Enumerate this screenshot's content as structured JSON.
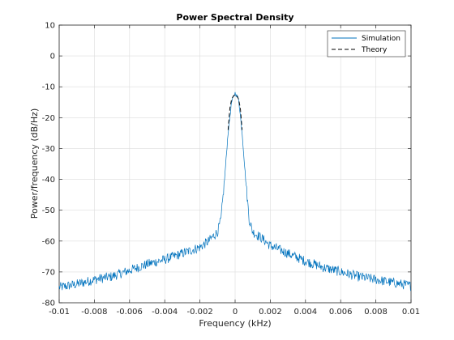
{
  "chart_data": {
    "type": "line",
    "title": "Power Spectral Density",
    "xlabel": "Frequency (kHz)",
    "ylabel": "Power/frequency (dB/Hz)",
    "xlim": [
      -0.01,
      0.01
    ],
    "ylim": [
      -80,
      10
    ],
    "xticks": [
      -0.01,
      -0.008,
      -0.006,
      -0.004,
      -0.002,
      0,
      0.002,
      0.004,
      0.006,
      0.008,
      0.01
    ],
    "xtick_labels": [
      "-0.01",
      "-0.008",
      "-0.006",
      "-0.004",
      "-0.002",
      "0",
      "0.002",
      "0.004",
      "0.006",
      "0.008",
      "0.01"
    ],
    "yticks": [
      10,
      0,
      -10,
      -20,
      -30,
      -40,
      -50,
      -60,
      -70,
      -80
    ],
    "ytick_labels": [
      "10",
      "0",
      "-10",
      "-20",
      "-30",
      "-40",
      "-50",
      "-60",
      "-70",
      "-80"
    ],
    "grid": true,
    "legend_position": "top-right",
    "colors": {
      "simulation": "#0072BD",
      "theory": "#000000",
      "grid": "#dcdcdc",
      "axes": "#262626"
    },
    "series": [
      {
        "name": "Simulation",
        "style": "solid",
        "x": [
          -0.01,
          -0.009,
          -0.008,
          -0.007,
          -0.006,
          -0.005,
          -0.004,
          -0.003,
          -0.002,
          -0.0015,
          -0.001,
          -0.0008,
          -0.0006,
          -0.0004,
          -0.0002,
          0,
          0.0002,
          0.0004,
          0.0006,
          0.0008,
          0.001,
          0.0015,
          0.002,
          0.003,
          0.004,
          0.005,
          0.006,
          0.007,
          0.008,
          0.009,
          0.01
        ],
        "y": [
          -75,
          -74,
          -72.5,
          -71.5,
          -69.5,
          -67.5,
          -66,
          -64,
          -62,
          -60,
          -57,
          -53,
          -40,
          -25,
          -15,
          -12,
          -14,
          -25,
          -40,
          -53,
          -57,
          -59,
          -61.5,
          -64,
          -66.5,
          -68.5,
          -70,
          -71.5,
          -72.5,
          -73.5,
          -74.5
        ]
      },
      {
        "name": "Theory",
        "style": "dashed",
        "x": [
          -0.0004,
          -0.0003,
          -0.0002,
          -0.0001,
          0,
          0.0001,
          0.0002,
          0.0003,
          0.0004
        ],
        "y": [
          -24,
          -17,
          -14,
          -13,
          -12.5,
          -13,
          -14,
          -17,
          -24
        ]
      }
    ]
  }
}
